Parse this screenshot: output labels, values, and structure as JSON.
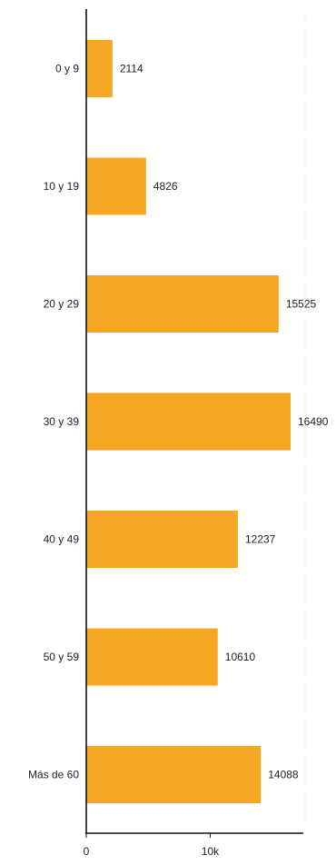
{
  "chart_data": {
    "type": "bar",
    "orientation": "horizontal",
    "categories": [
      "0 y 9",
      "10 y 19",
      "20 y 29",
      "30 y 39",
      "40 y 49",
      "50 y 59",
      "Más de 60"
    ],
    "values": [
      2114,
      4826,
      15525,
      16490,
      12237,
      10610,
      14088
    ],
    "value_labels": [
      "2114",
      "4826",
      "15525",
      "16490",
      "12237",
      "10610",
      "14088"
    ],
    "x_ticks": [
      {
        "value": 0,
        "label": "0"
      },
      {
        "value": 10000,
        "label": "10k"
      }
    ],
    "xlim": [
      0,
      17000
    ],
    "title": "",
    "xlabel": "",
    "ylabel": "",
    "grid": false,
    "legend": "none",
    "bar_color": "#F5A623",
    "axis_color": "#111111",
    "grid_hint_color": "#e6e6e6"
  }
}
